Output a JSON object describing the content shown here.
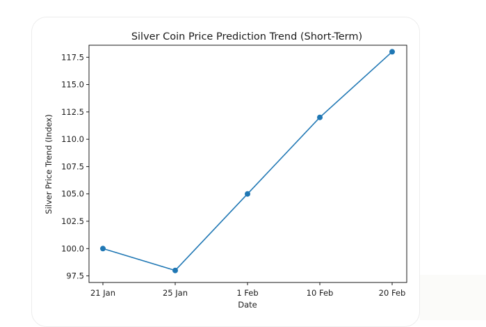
{
  "chart_data": {
    "type": "line",
    "title": "Silver Coin Price Prediction Trend (Short-Term)",
    "xlabel": "Date",
    "ylabel": "Silver Price Trend (Index)",
    "categories": [
      "21 Jan",
      "25 Jan",
      "1 Feb",
      "10 Feb",
      "20 Feb"
    ],
    "values": [
      100.0,
      98.0,
      105.0,
      112.0,
      118.0
    ],
    "yticks": [
      "97.5",
      "100.0",
      "102.5",
      "105.0",
      "107.5",
      "110.0",
      "112.5",
      "115.0",
      "117.5"
    ],
    "ylim": [
      96.9,
      118.6
    ],
    "grid": false,
    "marker": "circle",
    "line_color": "#1f77b4"
  }
}
